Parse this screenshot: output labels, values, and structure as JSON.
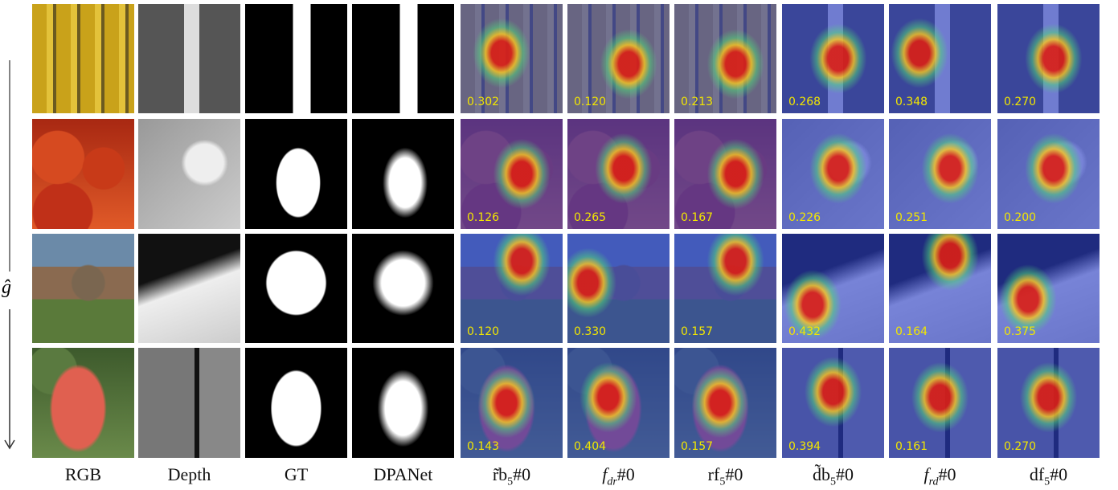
{
  "axis_label": "ĝ",
  "columns": [
    {
      "base": "RGB"
    },
    {
      "base": "Depth"
    },
    {
      "base": "GT"
    },
    {
      "base": "DPANet"
    },
    {
      "base": "r̃b",
      "sub": "5",
      "suffix": "#0"
    },
    {
      "base": "f",
      "sub": "dr",
      "suffix": "#0",
      "italic": true
    },
    {
      "base": "rf",
      "sub": "5",
      "suffix": "#0"
    },
    {
      "base": "d̃b",
      "sub": "5",
      "suffix": "#0"
    },
    {
      "base": "f",
      "sub": "rd",
      "suffix": "#0",
      "italic": true
    },
    {
      "base": "df",
      "sub": "5",
      "suffix": "#0"
    }
  ],
  "rows": [
    {
      "scores": [
        "0.302",
        "0.120",
        "0.213",
        "0.268",
        "0.348",
        "0.270"
      ]
    },
    {
      "scores": [
        "0.126",
        "0.265",
        "0.167",
        "0.226",
        "0.251",
        "0.200"
      ]
    },
    {
      "scores": [
        "0.120",
        "0.330",
        "0.157",
        "0.432",
        "0.164",
        "0.375"
      ]
    },
    {
      "scores": [
        "0.143",
        "0.404",
        "0.157",
        "0.394",
        "0.161",
        "0.270"
      ]
    }
  ]
}
